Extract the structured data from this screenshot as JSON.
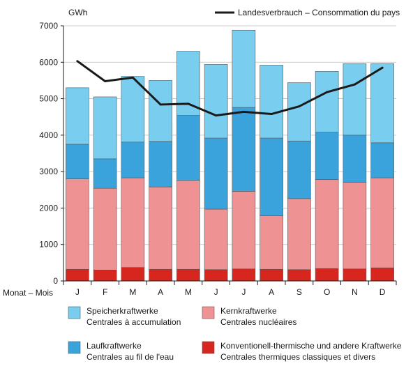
{
  "chart_data": {
    "type": "bar",
    "stacked": true,
    "unit_label": "GWh",
    "xlabel": "Monat – Mois",
    "categories": [
      "J",
      "F",
      "M",
      "A",
      "M",
      "J",
      "J",
      "A",
      "S",
      "O",
      "N",
      "D"
    ],
    "ylim": [
      0,
      7000
    ],
    "yticks": [
      0,
      1000,
      2000,
      3000,
      4000,
      5000,
      6000,
      7000
    ],
    "series": [
      {
        "name": "Konventionell-thermische und andere Kraftwerke",
        "name2": "Centrales thermiques classiques et divers",
        "color": "#d7261e",
        "values": [
          320,
          300,
          370,
          320,
          320,
          310,
          330,
          320,
          310,
          340,
          330,
          360
        ]
      },
      {
        "name": "Kernkraftwerke",
        "name2": "Centrales nucléaires",
        "color": "#ef9294",
        "values": [
          2480,
          2240,
          2460,
          2260,
          2440,
          1660,
          2130,
          1470,
          1950,
          2440,
          2380,
          2470
        ]
      },
      {
        "name": "Laufkraftwerke",
        "name2": "Centrales au fil de l'eau",
        "color": "#3ba3dc",
        "values": [
          950,
          810,
          980,
          1250,
          1780,
          1950,
          2300,
          2130,
          1580,
          1300,
          1290,
          960
        ]
      },
      {
        "name": "Speicherkraftwerke",
        "name2": "Centrales à accumulation",
        "color": "#79cdee",
        "values": [
          1550,
          1700,
          1800,
          1670,
          1760,
          2020,
          2120,
          2000,
          1600,
          1670,
          1960,
          2170
        ]
      }
    ],
    "line": {
      "name": "Landesverbrauch – Consommation du pays",
      "color": "#1a1a1a",
      "values": [
        6030,
        5480,
        5580,
        4840,
        4860,
        4540,
        4640,
        4580,
        4790,
        5180,
        5390,
        5850
      ]
    },
    "grid": "horizontal",
    "legend_top": "top-right",
    "legend_bottom": "bottom"
  }
}
